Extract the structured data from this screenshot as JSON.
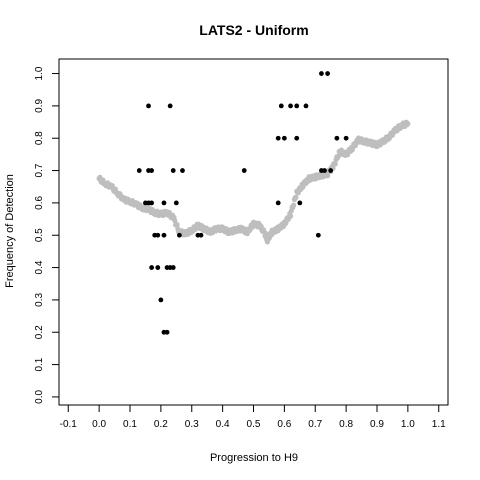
{
  "chart_data": {
    "type": "scatter",
    "title": "LATS2 - Uniform",
    "xlabel": "Progression to H9",
    "ylabel": "Frequency of Detection",
    "xlim": [
      -0.13,
      1.13
    ],
    "ylim": [
      -0.025,
      1.045
    ],
    "xticks": [
      "-0.1",
      "0.0",
      "0.1",
      "0.2",
      "0.3",
      "0.4",
      "0.5",
      "0.6",
      "0.7",
      "0.8",
      "0.9",
      "1.0",
      "1.1"
    ],
    "yticks": [
      "0.0",
      "0.1",
      "0.2",
      "0.3",
      "0.4",
      "0.5",
      "0.6",
      "0.7",
      "0.8",
      "0.9",
      "1.0"
    ],
    "grid": false,
    "points": [
      {
        "x": 0.13,
        "y": 0.7
      },
      {
        "x": 0.15,
        "y": 0.6
      },
      {
        "x": 0.16,
        "y": 0.6
      },
      {
        "x": 0.17,
        "y": 0.6
      },
      {
        "x": 0.16,
        "y": 0.7
      },
      {
        "x": 0.17,
        "y": 0.7
      },
      {
        "x": 0.16,
        "y": 0.9
      },
      {
        "x": 0.17,
        "y": 0.4
      },
      {
        "x": 0.18,
        "y": 0.5
      },
      {
        "x": 0.19,
        "y": 0.5
      },
      {
        "x": 0.19,
        "y": 0.4
      },
      {
        "x": 0.2,
        "y": 0.3
      },
      {
        "x": 0.21,
        "y": 0.2
      },
      {
        "x": 0.22,
        "y": 0.2
      },
      {
        "x": 0.21,
        "y": 0.5
      },
      {
        "x": 0.21,
        "y": 0.6
      },
      {
        "x": 0.22,
        "y": 0.4
      },
      {
        "x": 0.23,
        "y": 0.4
      },
      {
        "x": 0.24,
        "y": 0.4
      },
      {
        "x": 0.23,
        "y": 0.9
      },
      {
        "x": 0.24,
        "y": 0.7
      },
      {
        "x": 0.25,
        "y": 0.6
      },
      {
        "x": 0.26,
        "y": 0.5
      },
      {
        "x": 0.27,
        "y": 0.7
      },
      {
        "x": 0.32,
        "y": 0.5
      },
      {
        "x": 0.33,
        "y": 0.5
      },
      {
        "x": 0.47,
        "y": 0.7
      },
      {
        "x": 0.58,
        "y": 0.8
      },
      {
        "x": 0.58,
        "y": 0.6
      },
      {
        "x": 0.59,
        "y": 0.9
      },
      {
        "x": 0.6,
        "y": 0.8
      },
      {
        "x": 0.62,
        "y": 0.9
      },
      {
        "x": 0.64,
        "y": 0.9
      },
      {
        "x": 0.64,
        "y": 0.8
      },
      {
        "x": 0.65,
        "y": 0.6
      },
      {
        "x": 0.67,
        "y": 0.9
      },
      {
        "x": 0.71,
        "y": 0.5
      },
      {
        "x": 0.72,
        "y": 0.7
      },
      {
        "x": 0.73,
        "y": 0.7
      },
      {
        "x": 0.72,
        "y": 1.0
      },
      {
        "x": 0.74,
        "y": 1.0
      },
      {
        "x": 0.75,
        "y": 0.7
      },
      {
        "x": 0.77,
        "y": 0.8
      },
      {
        "x": 0.8,
        "y": 0.8
      }
    ],
    "trend": [
      {
        "x": 0.0,
        "y": 0.675
      },
      {
        "x": 0.02,
        "y": 0.66
      },
      {
        "x": 0.04,
        "y": 0.65
      },
      {
        "x": 0.06,
        "y": 0.63
      },
      {
        "x": 0.08,
        "y": 0.61
      },
      {
        "x": 0.1,
        "y": 0.605
      },
      {
        "x": 0.12,
        "y": 0.595
      },
      {
        "x": 0.14,
        "y": 0.585
      },
      {
        "x": 0.16,
        "y": 0.58
      },
      {
        "x": 0.18,
        "y": 0.57
      },
      {
        "x": 0.2,
        "y": 0.565
      },
      {
        "x": 0.22,
        "y": 0.57
      },
      {
        "x": 0.24,
        "y": 0.555
      },
      {
        "x": 0.26,
        "y": 0.51
      },
      {
        "x": 0.28,
        "y": 0.505
      },
      {
        "x": 0.3,
        "y": 0.515
      },
      {
        "x": 0.32,
        "y": 0.53
      },
      {
        "x": 0.34,
        "y": 0.52
      },
      {
        "x": 0.36,
        "y": 0.51
      },
      {
        "x": 0.38,
        "y": 0.52
      },
      {
        "x": 0.4,
        "y": 0.52
      },
      {
        "x": 0.42,
        "y": 0.51
      },
      {
        "x": 0.44,
        "y": 0.515
      },
      {
        "x": 0.46,
        "y": 0.52
      },
      {
        "x": 0.48,
        "y": 0.51
      },
      {
        "x": 0.5,
        "y": 0.535
      },
      {
        "x": 0.52,
        "y": 0.53
      },
      {
        "x": 0.54,
        "y": 0.5
      },
      {
        "x": 0.545,
        "y": 0.485
      },
      {
        "x": 0.56,
        "y": 0.51
      },
      {
        "x": 0.58,
        "y": 0.52
      },
      {
        "x": 0.6,
        "y": 0.535
      },
      {
        "x": 0.62,
        "y": 0.565
      },
      {
        "x": 0.64,
        "y": 0.63
      },
      {
        "x": 0.66,
        "y": 0.655
      },
      {
        "x": 0.68,
        "y": 0.675
      },
      {
        "x": 0.7,
        "y": 0.68
      },
      {
        "x": 0.72,
        "y": 0.685
      },
      {
        "x": 0.74,
        "y": 0.69
      },
      {
        "x": 0.76,
        "y": 0.715
      },
      {
        "x": 0.78,
        "y": 0.76
      },
      {
        "x": 0.8,
        "y": 0.75
      },
      {
        "x": 0.82,
        "y": 0.77
      },
      {
        "x": 0.84,
        "y": 0.795
      },
      {
        "x": 0.86,
        "y": 0.79
      },
      {
        "x": 0.88,
        "y": 0.785
      },
      {
        "x": 0.9,
        "y": 0.78
      },
      {
        "x": 0.92,
        "y": 0.79
      },
      {
        "x": 0.94,
        "y": 0.805
      },
      {
        "x": 0.96,
        "y": 0.825
      },
      {
        "x": 0.98,
        "y": 0.84
      },
      {
        "x": 1.0,
        "y": 0.845
      }
    ],
    "colors": {
      "points": "#000000",
      "trend": "#bebebe",
      "axis": "#000000"
    }
  }
}
